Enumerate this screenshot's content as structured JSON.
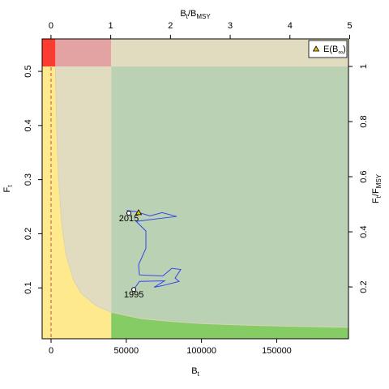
{
  "chart_data": {
    "type": "kobe",
    "x_label": [
      "B",
      "t"
    ],
    "y_label": [
      "F",
      "t"
    ],
    "x2_label": [
      "B",
      "t",
      "/B",
      "MSY"
    ],
    "y2_label": [
      "F",
      "t",
      "/F",
      "MSY"
    ],
    "xlim": [
      -5930,
      197700
    ],
    "xticks": [
      0,
      50000,
      100000,
      150000
    ],
    "ylim": [
      0.006,
      0.56
    ],
    "yticks": [
      0.1,
      0.2,
      0.3,
      0.4,
      0.5
    ],
    "x2lim": [
      -0.148,
      4.98
    ],
    "x2ticks": [
      0,
      1,
      2,
      3,
      4,
      5
    ],
    "y2lim": [
      0.012,
      1.1
    ],
    "y2ticks": [
      0.2,
      0.4,
      0.6,
      0.8,
      1
    ],
    "reference": {
      "bmsy": 40000,
      "fmsy": 0.509
    },
    "vline": 0,
    "vline_color": "#b5534a",
    "region_colors": {
      "red": "#ff3b30",
      "pink": "#e4a3a3",
      "beige": "#e1dbc0",
      "green": "#bad2b3",
      "yellow": "#ffe98d",
      "bright_green": "#86cc65"
    },
    "boundary": {
      "x": [
        2870,
        3000,
        4000,
        5000,
        7000,
        10000,
        15000,
        20000,
        30000,
        40000,
        60000,
        80000,
        100000,
        130000,
        160000,
        197700
      ],
      "y": [
        0.509,
        0.488,
        0.371,
        0.301,
        0.22,
        0.16,
        0.114,
        0.09,
        0.067,
        0.055,
        0.043,
        0.038,
        0.034,
        0.031,
        0.029,
        0.027
      ],
      "color": "#d8d2b8"
    },
    "trajectory": {
      "x": [
        55000,
        58700,
        75430,
        68430,
        73820,
        85130,
        82440,
        86210,
        80280,
        74350,
        58730,
        58190,
        63040,
        63040,
        56570,
        83510,
        73820,
        65730,
        56040,
        50650,
        51720
      ],
      "y": [
        0.097,
        0.112,
        0.113,
        0.101,
        0.104,
        0.112,
        0.118,
        0.134,
        0.136,
        0.122,
        0.124,
        0.143,
        0.173,
        0.205,
        0.223,
        0.232,
        0.239,
        0.233,
        0.241,
        0.243,
        0.238
      ],
      "color": "#3344ee"
    },
    "start_label": "1995",
    "end_label": "2015",
    "equilibrium": {
      "x": 58190,
      "y": 0.239,
      "color": "#e0c000"
    },
    "legend": [
      "E(B",
      "∞",
      ")"
    ]
  }
}
